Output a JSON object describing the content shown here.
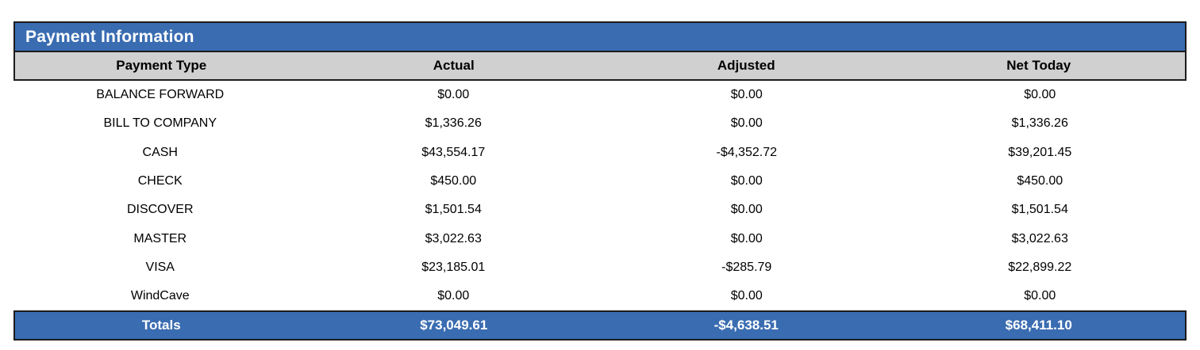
{
  "colors": {
    "accent_blue": "#3a6cb1",
    "header_gray": "#d0d0d0",
    "border_dark": "#1c1c1c",
    "totals_text": "#ffffff"
  },
  "table": {
    "title": "Payment Information",
    "columns": [
      "Payment Type",
      "Actual",
      "Adjusted",
      "Net Today"
    ],
    "rows": [
      {
        "payment_type": "BALANCE FORWARD",
        "actual": "$0.00",
        "adjusted": "$0.00",
        "net_today": "$0.00"
      },
      {
        "payment_type": "BILL TO COMPANY",
        "actual": "$1,336.26",
        "adjusted": "$0.00",
        "net_today": "$1,336.26"
      },
      {
        "payment_type": "CASH",
        "actual": "$43,554.17",
        "adjusted": "-$4,352.72",
        "net_today": "$39,201.45"
      },
      {
        "payment_type": "CHECK",
        "actual": "$450.00",
        "adjusted": "$0.00",
        "net_today": "$450.00"
      },
      {
        "payment_type": "DISCOVER",
        "actual": "$1,501.54",
        "adjusted": "$0.00",
        "net_today": "$1,501.54"
      },
      {
        "payment_type": "MASTER",
        "actual": "$3,022.63",
        "adjusted": "$0.00",
        "net_today": "$3,022.63"
      },
      {
        "payment_type": "VISA",
        "actual": "$23,185.01",
        "adjusted": "-$285.79",
        "net_today": "$22,899.22"
      },
      {
        "payment_type": "WindCave",
        "actual": "$0.00",
        "adjusted": "$0.00",
        "net_today": "$0.00"
      }
    ],
    "totals": {
      "label": "Totals",
      "actual": "$73,049.61",
      "adjusted": "-$4,638.51",
      "net_today": "$68,411.10"
    }
  }
}
